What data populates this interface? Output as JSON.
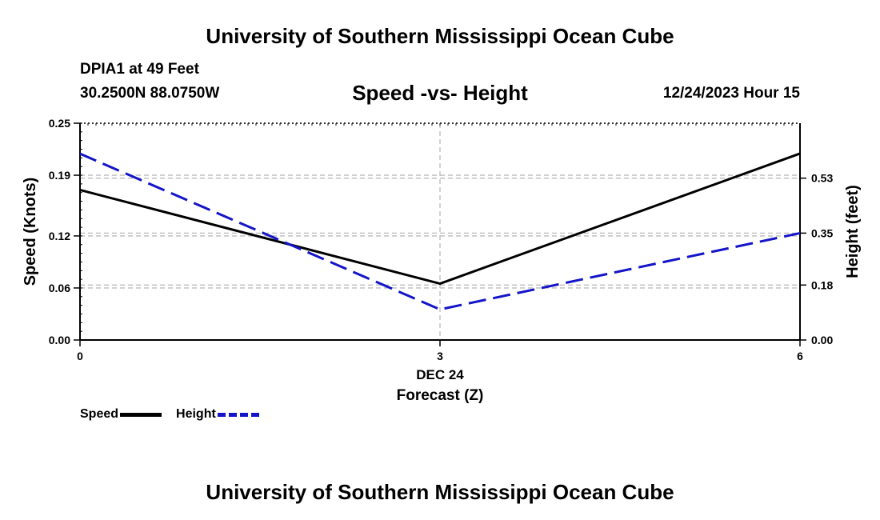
{
  "header": {
    "title": "University of Southern Mississippi Ocean Cube",
    "station": "DPIA1 at 49 Feet",
    "coords": "30.2500N  88.0750W",
    "timestamp": "12/24/2023 Hour 15"
  },
  "footer": {
    "title": "University of Southern Mississippi Ocean Cube"
  },
  "chart_data": {
    "type": "line",
    "title": "Speed -vs- Height",
    "xlabel": "Forecast (Z)",
    "x_date_label": "DEC 24",
    "x": [
      0,
      3,
      6
    ],
    "xlim": [
      0,
      6
    ],
    "x_ticks": [
      "0",
      "3",
      "6"
    ],
    "ylabel_left": "Speed (Knots)",
    "ylim_left": [
      0,
      0.25
    ],
    "y_ticks_left": [
      "0.00",
      "0.06",
      "0.12",
      "0.19",
      "0.25"
    ],
    "ylabel_right": "Height (feet)",
    "ylim_right": [
      0,
      0.71
    ],
    "y_ticks_right": [
      "0.00",
      "0.18",
      "0.35",
      "0.53"
    ],
    "grid": true,
    "series": [
      {
        "name": "Speed",
        "axis": "left",
        "style": "solid",
        "color": "#000000",
        "values": [
          0.173,
          0.065,
          0.215
        ]
      },
      {
        "name": "Height",
        "axis": "right",
        "style": "dashed",
        "color": "#1414c8",
        "values": [
          0.61,
          0.1,
          0.35
        ]
      }
    ]
  },
  "legend": {
    "speed_label": "Speed",
    "height_label": "Height"
  }
}
